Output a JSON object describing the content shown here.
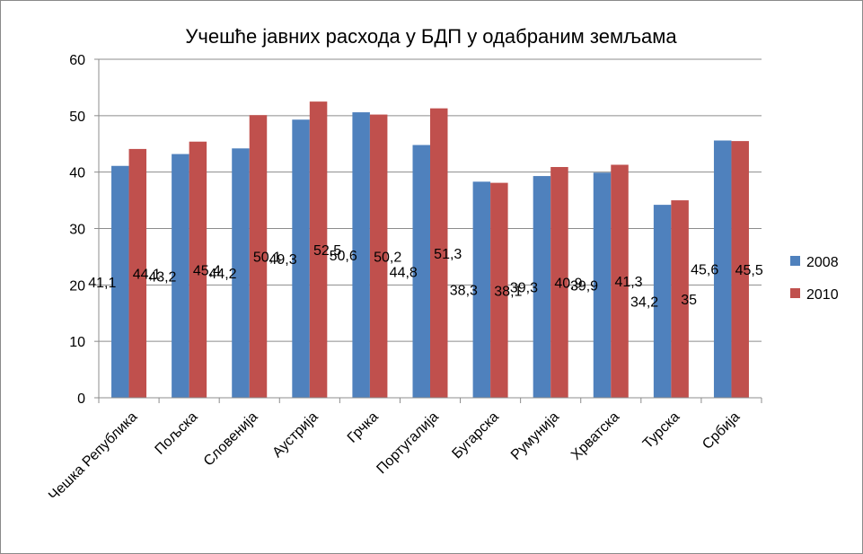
{
  "chart_data": {
    "type": "bar",
    "title": "Учешће јавних расхода у БДП у одабраним земљама",
    "xlabel": "",
    "ylabel": "",
    "ylim": [
      0,
      60
    ],
    "yticks": [
      0,
      10,
      20,
      30,
      40,
      50,
      60
    ],
    "grid": true,
    "legend_position": "right",
    "categories": [
      "Чешка Република",
      "Пољска",
      "Словенија",
      "Аустрија",
      "Грчка",
      "Португалија",
      "Бугарска",
      "Румунија",
      "Хрватска",
      "Турска",
      "Србија"
    ],
    "series": [
      {
        "name": "2008",
        "color": "#4f81bd",
        "values": [
          41.1,
          43.2,
          44.2,
          49.3,
          50.6,
          44.8,
          38.3,
          39.3,
          39.9,
          34.2,
          45.6
        ],
        "labels": [
          "41,1",
          "43,2",
          "44,2",
          "49,3",
          "50,6",
          "44,8",
          "38,3",
          "39,3",
          "39,9",
          "34,2",
          "45,6"
        ]
      },
      {
        "name": "2010",
        "color": "#c0504d",
        "values": [
          44.1,
          45.4,
          50.1,
          52.5,
          50.2,
          51.3,
          38.1,
          40.9,
          41.3,
          35,
          45.5
        ],
        "labels": [
          "44,1",
          "45,4",
          "50,1",
          "52,5",
          "50,2",
          "51,3",
          "38,1",
          "40,9",
          "41,3",
          "35",
          "45,5"
        ]
      }
    ]
  }
}
